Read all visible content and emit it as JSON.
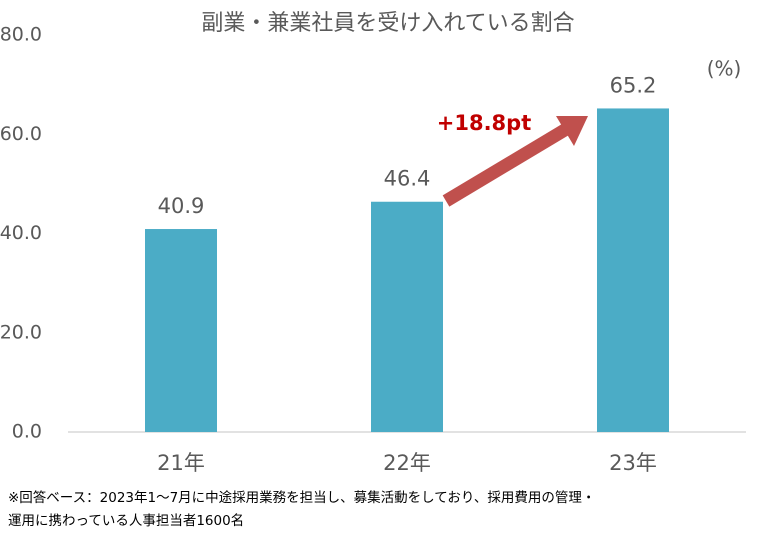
{
  "chart_data": {
    "type": "bar",
    "title": "副業・兼業社員を受け入れている割合",
    "unit_label": "(%)",
    "annotation": "+18.8pt",
    "categories": [
      "21年",
      "22年",
      "23年"
    ],
    "values": [
      40.9,
      46.4,
      65.2
    ],
    "color": "#4bacc6",
    "ylim": [
      0,
      80
    ],
    "yticks": [
      {
        "value": 0,
        "label": "0.0"
      },
      {
        "value": 20,
        "label": "20.0"
      },
      {
        "value": 40,
        "label": "40.0"
      },
      {
        "value": 60,
        "label": "60.0"
      },
      {
        "value": 80,
        "label": "80.0"
      }
    ],
    "grid": false,
    "footnote": [
      "※回答ベース：2023年1～7月に中途採用業務を担当し、募集活動をしており、採用費用の管理・",
      "運用に携わっている人事担当者1600名"
    ]
  }
}
